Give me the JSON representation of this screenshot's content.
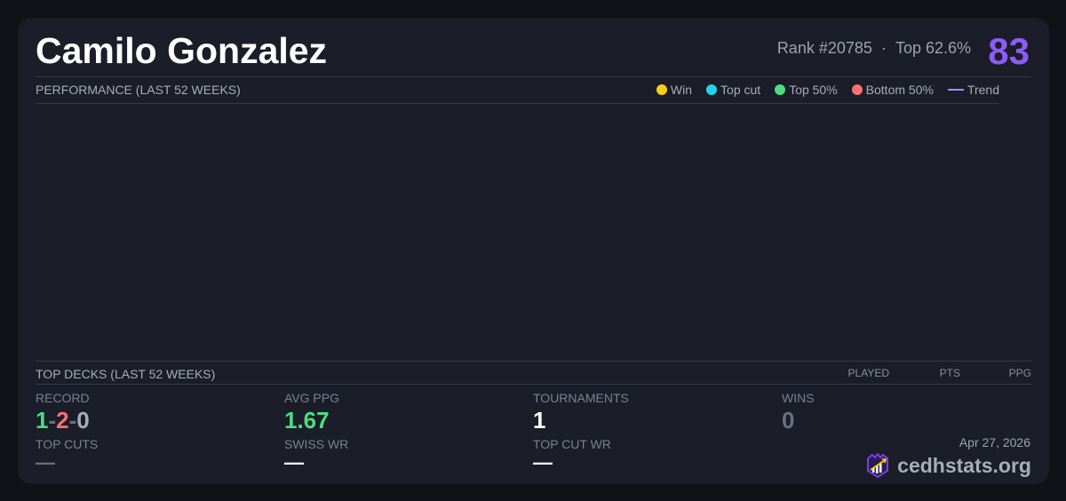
{
  "player": {
    "name": "Camilo Gonzalez",
    "rank": "Rank #20785",
    "separator": "·",
    "top_percent": "Top 62.6%",
    "score": "83"
  },
  "performance": {
    "title": "PERFORMANCE (LAST 52 WEEKS)",
    "legend": [
      {
        "label": "Win",
        "color": "#facc15"
      },
      {
        "label": "Top cut",
        "color": "#22d3ee"
      },
      {
        "label": "Top 50%",
        "color": "#4ade80"
      },
      {
        "label": "Bottom 50%",
        "color": "#f87171"
      }
    ],
    "trend": {
      "label": "Trend",
      "color": "#a78bfa"
    }
  },
  "decks": {
    "title": "TOP DECKS (LAST 52 WEEKS)",
    "columns": [
      "PLAYED",
      "PTS",
      "PPG"
    ]
  },
  "stats": {
    "record": {
      "label": "RECORD",
      "wins": "1",
      "losses": "2",
      "draws": "0",
      "sep": "-"
    },
    "avg_ppg": {
      "label": "AVG PPG",
      "value": "1.67"
    },
    "tournaments": {
      "label": "TOURNAMENTS",
      "value": "1"
    },
    "wins": {
      "label": "WINS",
      "value": "0"
    },
    "top_cuts": {
      "label": "TOP CUTS",
      "value": "—"
    },
    "swiss_wr": {
      "label": "SWISS WR",
      "value": "—"
    },
    "top_cut_wr": {
      "label": "TOP CUT WR",
      "value": "—"
    }
  },
  "footer": {
    "date": "Apr 27, 2026",
    "brand": "cedhstats.org"
  }
}
